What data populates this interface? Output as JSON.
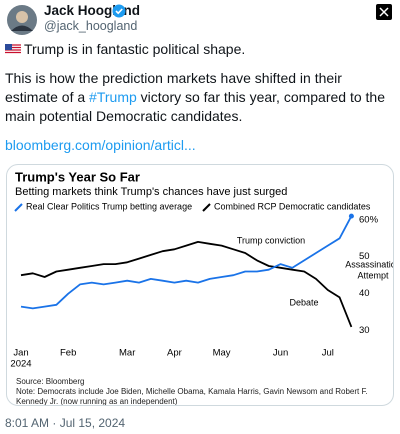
{
  "author": {
    "name": "Jack Hoogland",
    "handle": "@jack_hoogland"
  },
  "tweet": {
    "line1": "Trump is in fantastic political shape.",
    "paragraph2": [
      "This is how the prediction markets have shifted in their estimate of a ",
      "#Trump",
      " victory so far this year, compared to the main potential Democratic candidates."
    ],
    "link": "bloomberg.com/opinion/articl..."
  },
  "chart_data": {
    "type": "line",
    "title": "Trump's Year So Far",
    "subtitle": "Betting markets think Trump's chances have just surged",
    "categories": [
      "Jan",
      null,
      null,
      null,
      "Feb",
      null,
      null,
      null,
      null,
      "Mar",
      null,
      null,
      null,
      "Apr",
      null,
      null,
      null,
      "May",
      null,
      null,
      null,
      null,
      "Jun",
      null,
      null,
      null,
      "Jul",
      null,
      null
    ],
    "year_label": "2024",
    "series": [
      {
        "name": "Real Clear Politics Trump betting average",
        "color": "#1a73e8",
        "values": [
          36.5,
          36,
          36.5,
          37,
          40,
          42.5,
          43,
          42.5,
          43,
          43.5,
          43,
          44,
          43.5,
          43,
          43.5,
          43,
          44,
          44.5,
          45,
          46,
          46,
          46.5,
          48,
          47,
          49,
          51,
          53,
          55,
          61
        ]
      },
      {
        "name": "Combined RCP Democratic candidates",
        "color": "#000000",
        "values": [
          45,
          45.5,
          44.5,
          46,
          46.5,
          47,
          47.5,
          48,
          48,
          48.5,
          49.5,
          50.5,
          51.5,
          52,
          53,
          54,
          53.5,
          53,
          52,
          51,
          49,
          47.5,
          47,
          46.5,
          46,
          44,
          41,
          39,
          31
        ]
      }
    ],
    "ylim": [
      28,
      64
    ],
    "yticks": [
      30,
      40,
      50,
      {
        "value": 60,
        "label": "60%"
      }
    ],
    "grid": false,
    "annotations": [
      [
        "Trump conviction"
      ],
      [
        "Assassination",
        "Attempt"
      ],
      [
        "Debate"
      ]
    ],
    "source": "Source: Bloomberg",
    "note": "Note: Democrats include Joe Biden, Michelle Obama, Kamala Harris, Gavin Newsom and Robert F. Kennedy Jr. (now running as an independent)"
  },
  "timestamp": "8:01 AM · Jul 15, 2024"
}
